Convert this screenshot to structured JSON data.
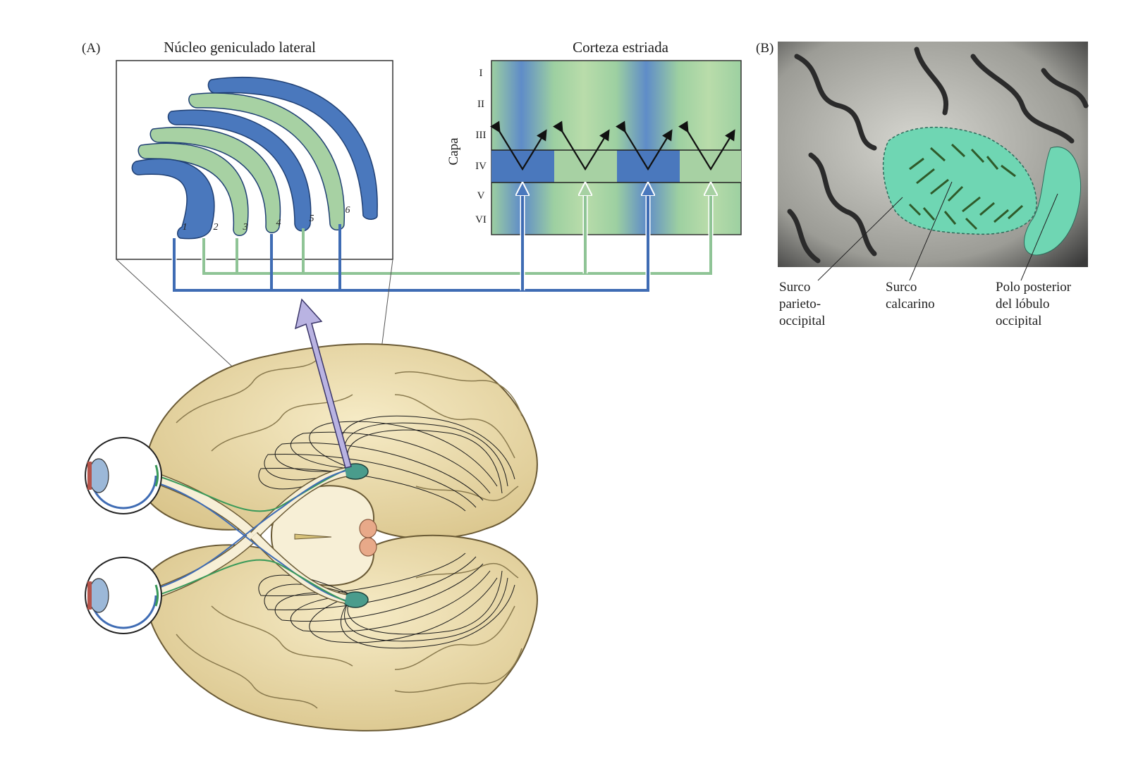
{
  "panelA": {
    "label": "(A)",
    "lgn": {
      "title": "Núcleo geniculado lateral",
      "layers": [
        {
          "num": "1",
          "type": "magno",
          "color": "#4a78bd"
        },
        {
          "num": "2",
          "type": "parvo",
          "color": "#a7d1a3"
        },
        {
          "num": "3",
          "type": "parvo",
          "color": "#a7d1a3"
        },
        {
          "num": "4",
          "type": "parvo",
          "color": "#4a78bd"
        },
        {
          "num": "5",
          "type": "parvo",
          "color": "#a7d1a3"
        },
        {
          "num": "6",
          "type": "parvo",
          "color": "#4a78bd"
        }
      ]
    },
    "cortex": {
      "title": "Corteza estriada",
      "axis_label": "Capa",
      "layers": [
        "I",
        "II",
        "III",
        "IV",
        "V",
        "VI"
      ],
      "columns": [
        "blue",
        "green",
        "blue",
        "green"
      ]
    }
  },
  "panelB": {
    "label": "(B)",
    "labels": {
      "parieto": [
        "Surco",
        "parieto-",
        "occipital"
      ],
      "calcarine": [
        "Surco",
        "calcarino"
      ],
      "pole": [
        "Polo posterior",
        "del lóbulo",
        "occipital"
      ]
    }
  },
  "colors": {
    "blue": "#4a78bd",
    "green": "#a7d1a3",
    "brain": "#ead9a6",
    "teal": "#5dcca8",
    "photo_dark": "#2a2a2a"
  }
}
